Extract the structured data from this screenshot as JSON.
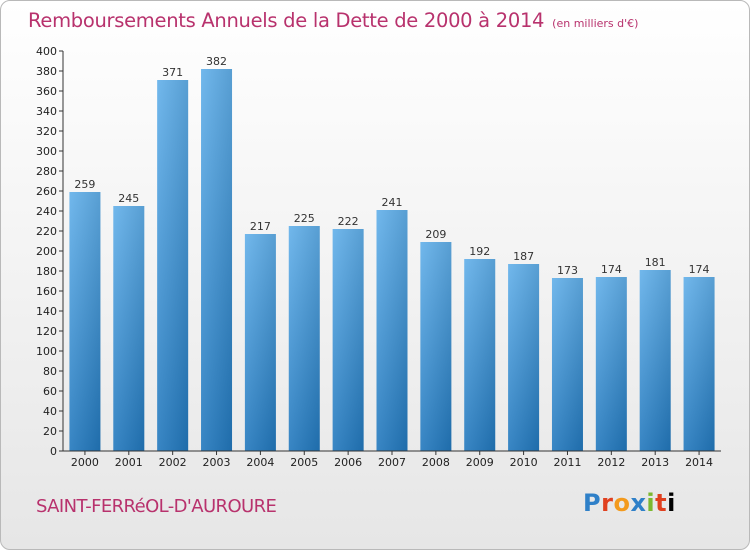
{
  "title": "Remboursements Annuels de la Dette de 2000 à 2014",
  "subtitle": "(en milliers d'€)",
  "commune": "SAINT-FERRéOL-D'AUROURE",
  "logo": {
    "letters": [
      "P",
      "r",
      "o",
      "x",
      "i",
      "t",
      "i"
    ],
    "text": "Proxiti"
  },
  "colors": {
    "bar_light": "#62b0ea",
    "bar_dark": "#2278bd",
    "title": "#b8326d"
  },
  "chart_data": {
    "type": "bar",
    "categories": [
      "2000",
      "2001",
      "2002",
      "2003",
      "2004",
      "2005",
      "2006",
      "2007",
      "2008",
      "2009",
      "2010",
      "2011",
      "2012",
      "2013",
      "2014"
    ],
    "values": [
      259,
      245,
      371,
      382,
      217,
      225,
      222,
      241,
      209,
      192,
      187,
      173,
      174,
      181,
      174
    ],
    "title": "Remboursements Annuels de la Dette de 2000 à 2014",
    "subtitle": "(en milliers d'€)",
    "xlabel": "",
    "ylabel": "",
    "ylim": [
      0,
      400
    ],
    "ytick_step": 20,
    "grid": false,
    "data_labels": true
  }
}
